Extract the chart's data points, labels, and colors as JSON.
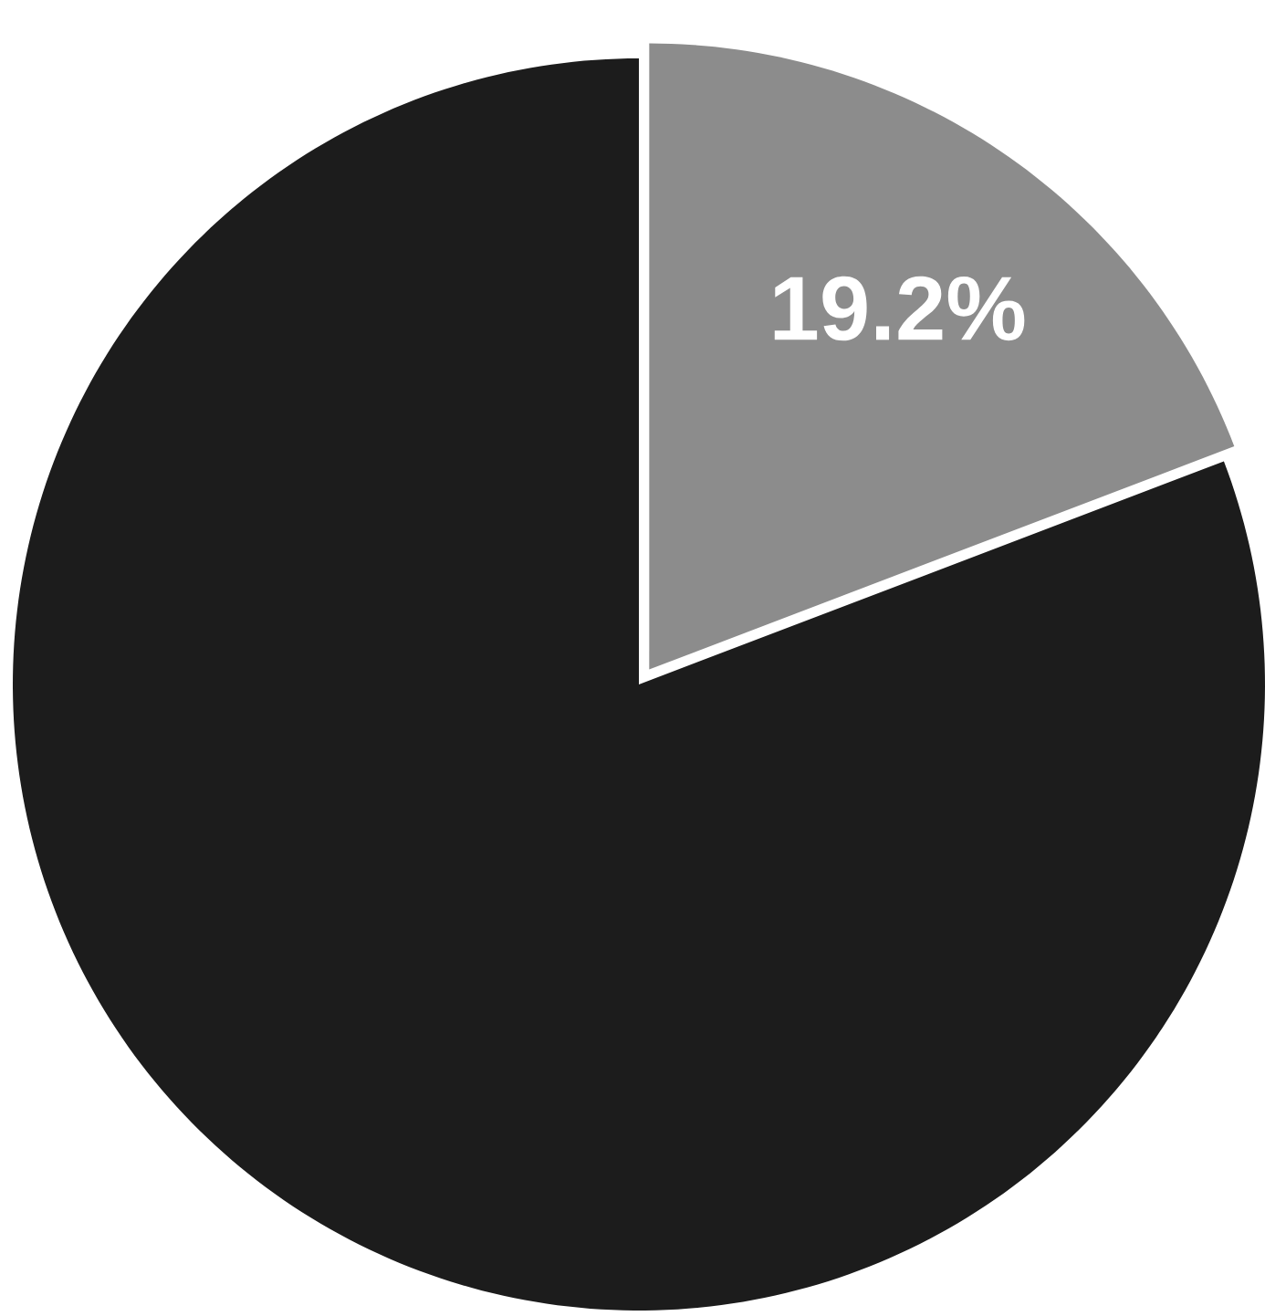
{
  "chart_data": {
    "type": "pie",
    "categories": [
      null,
      null
    ],
    "values": [
      19.2,
      80.8
    ],
    "colors": [
      "#8c8c8c",
      "#1c1c1c"
    ],
    "value_labels": [
      "19.2%",
      null
    ]
  }
}
